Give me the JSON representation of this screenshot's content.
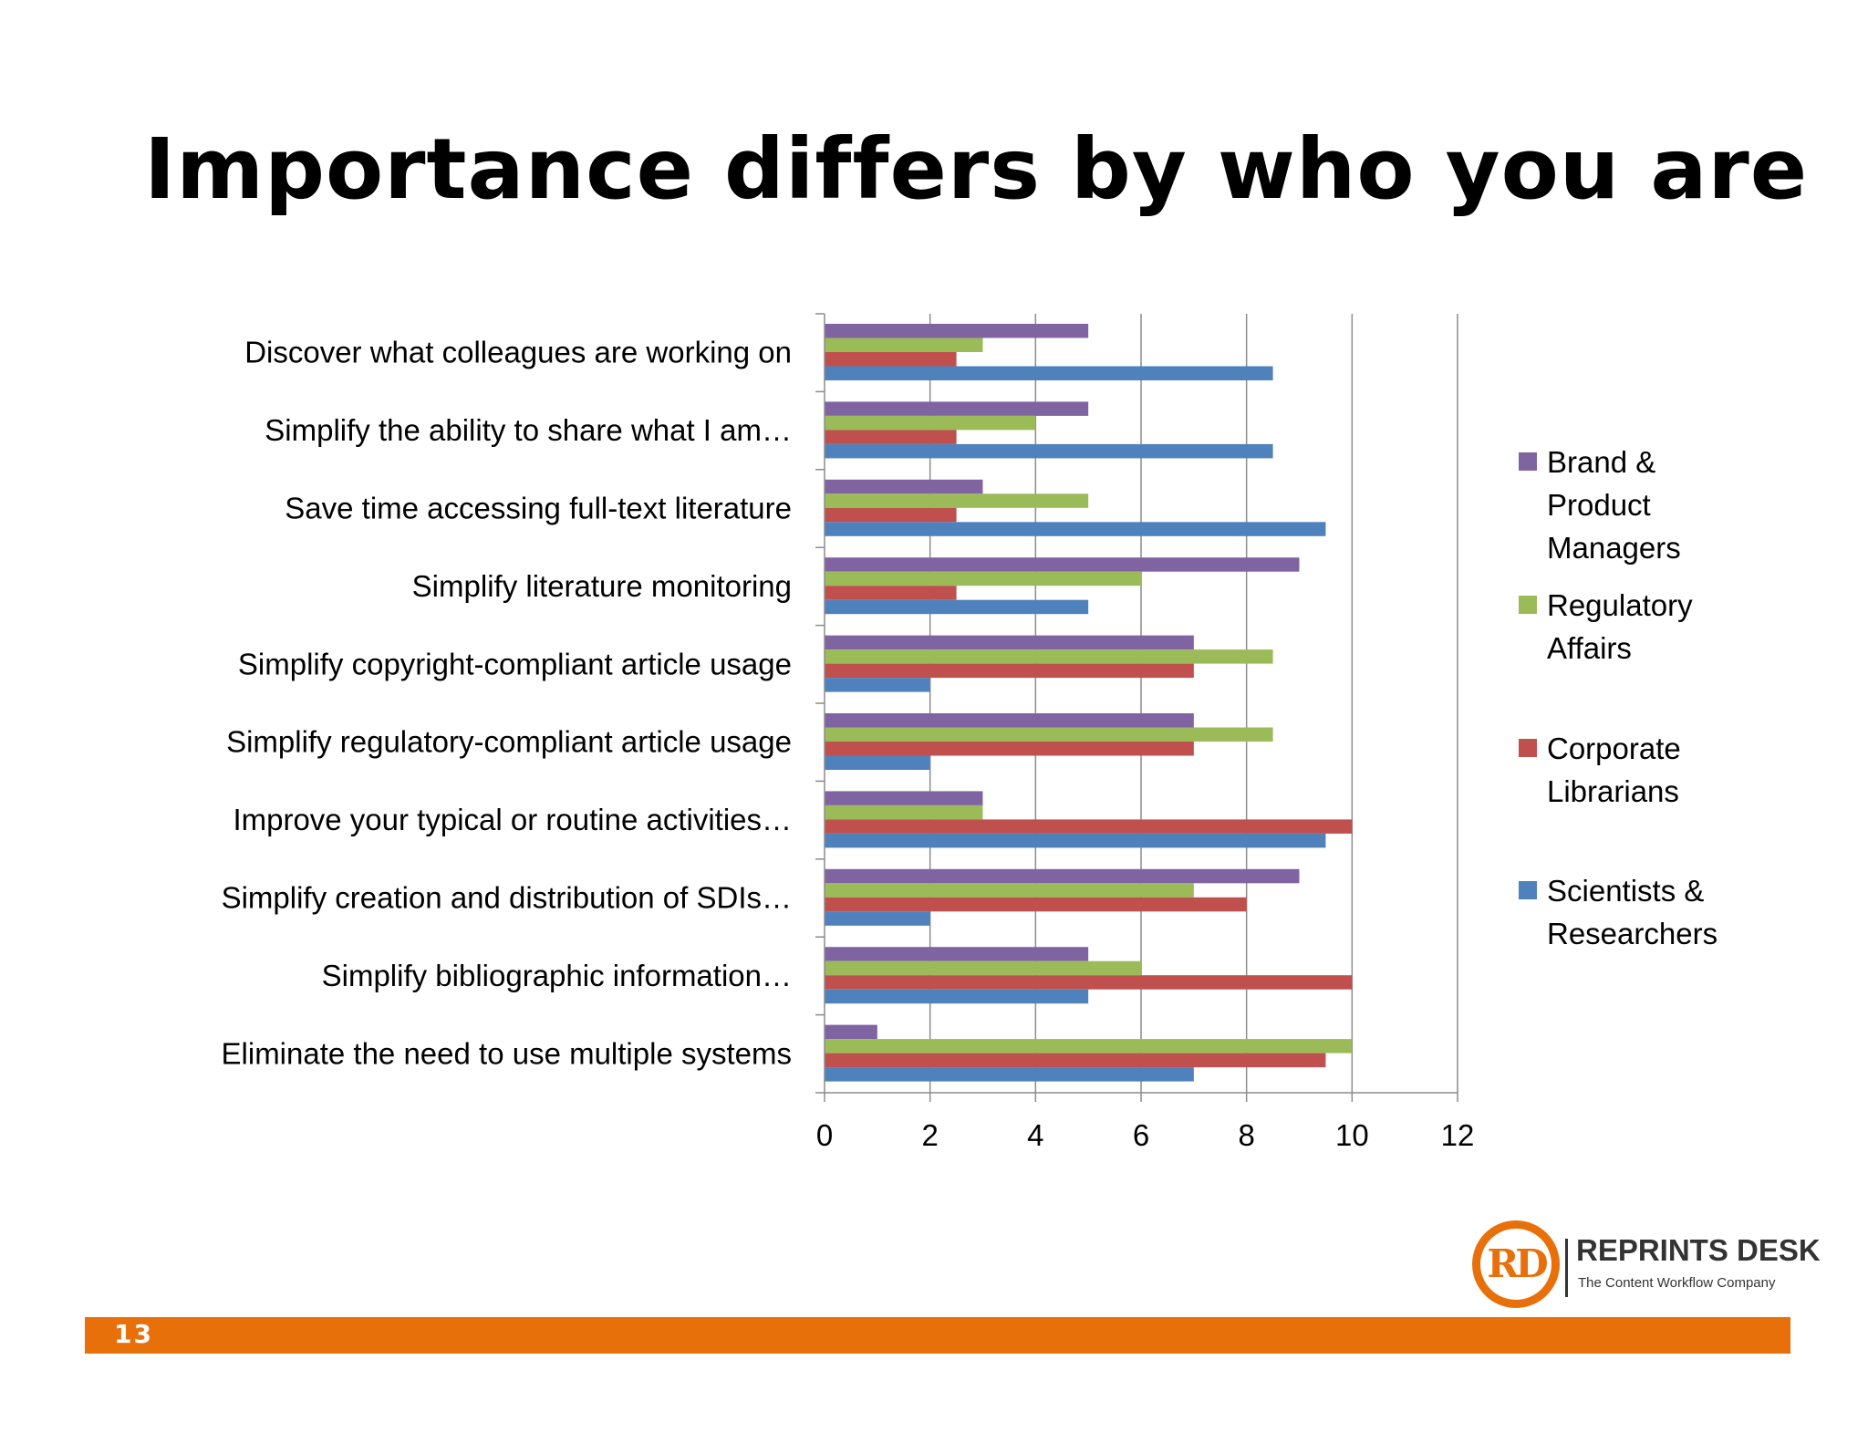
{
  "page": {
    "title": "Importance differs by who you are",
    "page_number": "13",
    "footer_color": "#e8700a"
  },
  "logo": {
    "letters": "RD",
    "name": "REPRINTS DESK",
    "tagline": "The Content Workflow Company",
    "color": "#e8700a"
  },
  "chart_data": {
    "type": "bar",
    "orientation": "horizontal",
    "categories": [
      "Discover what colleagues are working on",
      "Simplify the ability to share what I am…",
      "Save time accessing full-text literature",
      "Simplify literature monitoring",
      "Simplify copyright-compliant article usage",
      "Simplify regulatory-compliant article usage",
      "Improve your typical or routine activities…",
      "Simplify creation and distribution of SDIs…",
      "Simplify bibliographic information…",
      "Eliminate the need to use multiple systems"
    ],
    "series": [
      {
        "name": "Brand & Product Managers",
        "legend_lines": [
          "Brand &",
          "Product",
          "Managers"
        ],
        "color": "#8064a2",
        "values": [
          5,
          5,
          3,
          9,
          7,
          7,
          3,
          9,
          5,
          1
        ]
      },
      {
        "name": "Regulatory Affairs",
        "legend_lines": [
          "Regulatory",
          " Affairs"
        ],
        "color": "#9bbb59",
        "values": [
          3,
          4,
          5,
          6,
          8.5,
          8.5,
          3,
          7,
          6,
          10
        ]
      },
      {
        "name": "Corporate Librarians",
        "legend_lines": [
          "Corporate",
          "Librarians"
        ],
        "color": "#c0504d",
        "values": [
          2.5,
          2.5,
          2.5,
          2.5,
          7,
          7,
          10,
          8,
          10,
          9.5
        ]
      },
      {
        "name": "Scientists & Researchers",
        "legend_lines": [
          "Scientists &",
          "Researchers"
        ],
        "color": "#4f81bd",
        "values": [
          8.5,
          8.5,
          9.5,
          5,
          2,
          2,
          9.5,
          2,
          5,
          7
        ]
      }
    ],
    "xlim": [
      0,
      12
    ],
    "xticks": [
      "0",
      "2",
      "4",
      "6",
      "8",
      "10",
      "12"
    ],
    "grid": true,
    "legend_position": "right"
  }
}
